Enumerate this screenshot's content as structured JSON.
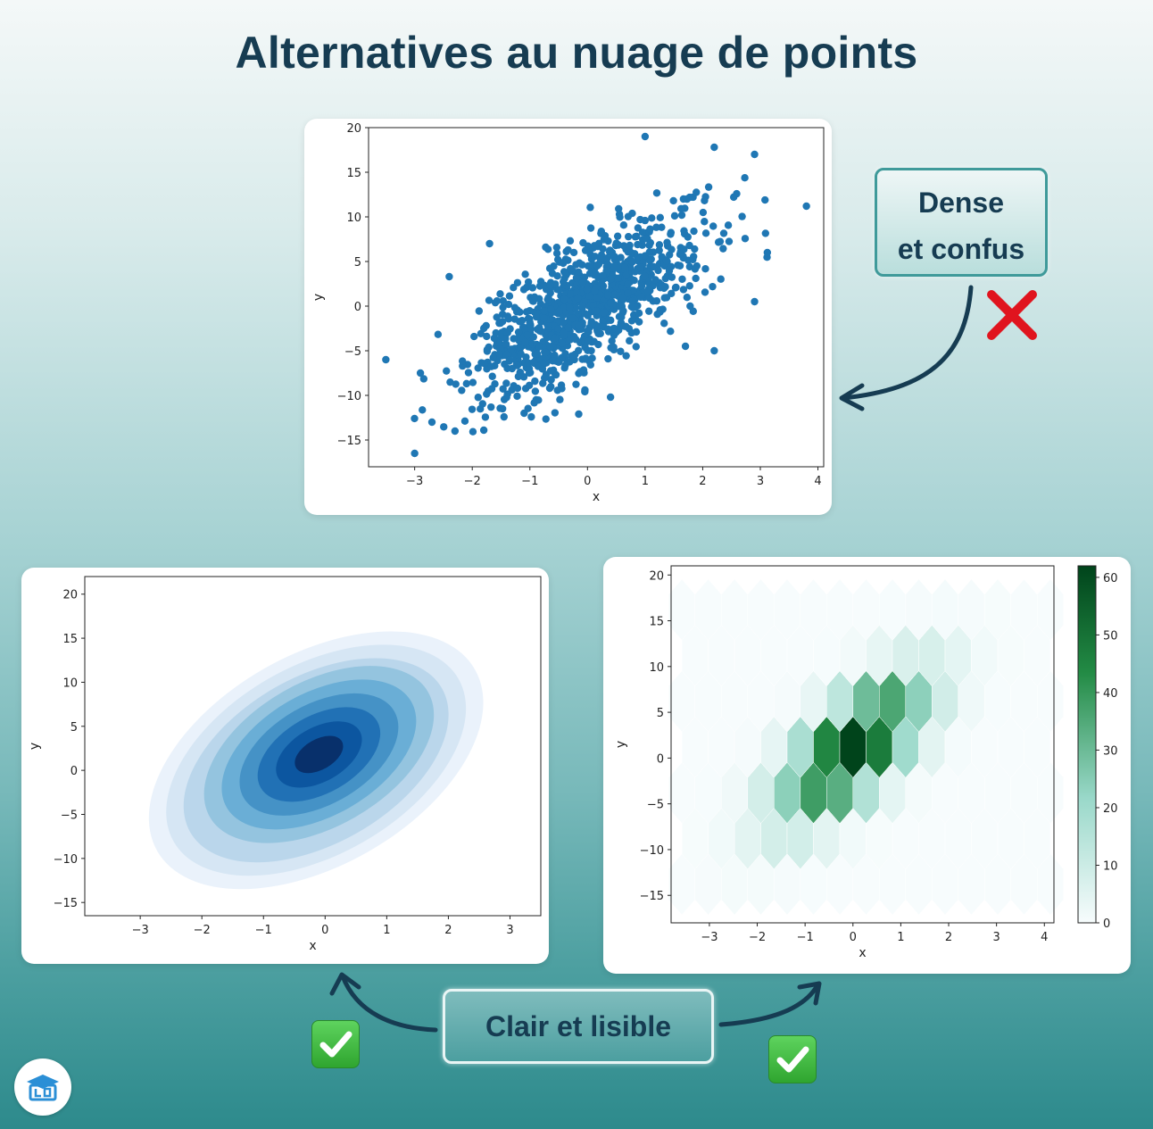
{
  "title": "Alternatives au nuage de points",
  "callouts": {
    "dense_line1": "Dense",
    "dense_line2": "et confus",
    "clear": "Clair et lisible"
  },
  "colors": {
    "scatter_dot": "#1f77b4",
    "kde_dark": "#08306b",
    "hex_dark": "#00441b",
    "title": "#163c52"
  },
  "icons": [
    "cross-mark-icon",
    "check-mark-icon",
    "check-mark-icon",
    "logo-icon"
  ],
  "chart_data": [
    {
      "type": "scatter",
      "xlabel": "x",
      "ylabel": "y",
      "xlim": [
        -3.8,
        4.1
      ],
      "ylim": [
        -18,
        20
      ],
      "xticks": [
        -3,
        -2,
        -1,
        0,
        1,
        2,
        3,
        4
      ],
      "yticks": [
        -15,
        -10,
        -5,
        0,
        5,
        10,
        15,
        20
      ],
      "tick_labels_x": [
        "−3",
        "−2",
        "−1",
        "0",
        "1",
        "2",
        "3",
        "4"
      ],
      "tick_labels_y": [
        "−15",
        "−10",
        "−5",
        "0",
        "5",
        "10",
        "15",
        "20"
      ],
      "points_description_count": 1000,
      "sample_points": [
        [
          -3.5,
          -6
        ],
        [
          -3,
          -16.5
        ],
        [
          -2.9,
          -7.5
        ],
        [
          -2.7,
          -13
        ],
        [
          -2.3,
          -14
        ],
        [
          -2.4,
          3.3
        ],
        [
          -1.8,
          -13.9
        ],
        [
          -1.7,
          7
        ],
        [
          3.8,
          11.2
        ],
        [
          2.9,
          17
        ],
        [
          2.2,
          -5
        ],
        [
          2.9,
          0.5
        ],
        [
          1,
          19
        ],
        [
          2.2,
          17.8
        ],
        [
          -1.1,
          -12
        ],
        [
          0.4,
          -10.2
        ],
        [
          1.7,
          -4.5
        ]
      ],
      "mean": [
        0,
        0
      ],
      "cov": [
        [
          1,
          3.5
        ],
        [
          3.5,
          25
        ]
      ],
      "seed": 7
    },
    {
      "type": "kde",
      "xlabel": "x",
      "ylabel": "y",
      "xlim": [
        -3.9,
        3.5
      ],
      "ylim": [
        -16.5,
        22
      ],
      "xticks": [
        -3,
        -2,
        -1,
        0,
        1,
        2,
        3
      ],
      "yticks": [
        -15,
        -10,
        -5,
        0,
        5,
        10,
        15,
        20
      ],
      "tick_labels_x": [
        "−3",
        "−2",
        "−1",
        "0",
        "1",
        "2",
        "3"
      ],
      "tick_labels_y": [
        "−15",
        "−10",
        "−5",
        "0",
        "5",
        "10",
        "15",
        "20"
      ],
      "levels": 9,
      "colors": [
        "#eaf2fb",
        "#d6e6f4",
        "#bad6eb",
        "#94c4df",
        "#6aaed6",
        "#4592c6",
        "#2171b5",
        "#0c56a0",
        "#08306b"
      ],
      "center": [
        -0.1,
        1.8
      ],
      "slope": 4.0
    },
    {
      "type": "hexbin",
      "xlabel": "x",
      "ylabel": "y",
      "xlim": [
        -3.8,
        4.2
      ],
      "ylim": [
        -18,
        21
      ],
      "xticks": [
        -3,
        -2,
        -1,
        0,
        1,
        2,
        3,
        4
      ],
      "yticks": [
        -15,
        -10,
        -5,
        0,
        5,
        10,
        15,
        20
      ],
      "tick_labels_x": [
        "−3",
        "−2",
        "−1",
        "0",
        "1",
        "2",
        "3",
        "4"
      ],
      "tick_labels_y": [
        "−15",
        "−10",
        "−5",
        "0",
        "5",
        "10",
        "15",
        "20"
      ],
      "colorbar": {
        "min": 0,
        "max": 62,
        "ticks": [
          0,
          10,
          20,
          30,
          40,
          50,
          60
        ]
      },
      "max_count": 62
    }
  ]
}
